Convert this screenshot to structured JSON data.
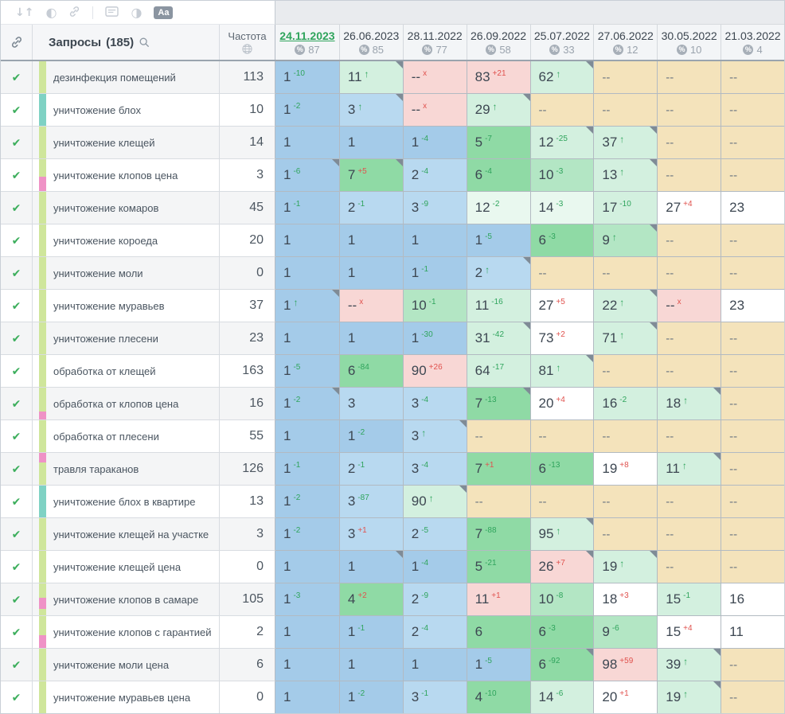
{
  "toolbar": {
    "sort_glyph": "↓↑",
    "contrast_glyph": "◐",
    "half_circle_glyph": "◑",
    "format_label": "Aa"
  },
  "header": {
    "queries_label": "Запросы",
    "queries_count": "(185)",
    "frequency_label": "Частота",
    "dates": [
      {
        "date": "24.11.2023",
        "percent": "87",
        "selected": true
      },
      {
        "date": "26.06.2023",
        "percent": "85"
      },
      {
        "date": "28.11.2022",
        "percent": "77"
      },
      {
        "date": "26.09.2022",
        "percent": "58"
      },
      {
        "date": "25.07.2022",
        "percent": "33"
      },
      {
        "date": "27.06.2022",
        "percent": "12"
      },
      {
        "date": "30.05.2022",
        "percent": "10"
      },
      {
        "date": "21.03.2022",
        "percent": "4"
      }
    ]
  },
  "colors": {
    "b1": "#a4cbe9",
    "b2": "#b8d9f0",
    "g": "#8fdaa5",
    "g2": "#b3e6c4",
    "m": "#d3f0df",
    "ml": "#e9f8ef",
    "w": "#ffffff",
    "p": "#f8d7d5",
    "t": "#f4e3bb",
    "tag_green": "#cfe69b",
    "tag_teal": "#7fd2c4",
    "tag_pink": "#ef92c6",
    "delta_up": "#2fa45c",
    "delta_down": "#e0524e",
    "date_selected": "#2fa45c",
    "check": "#3cae5c"
  },
  "rows": [
    {
      "keyword": "дезинфекция помещений",
      "frequency": "113",
      "tags": [
        {
          "color": "tag_green",
          "pct": 100
        }
      ],
      "cells": [
        {
          "v": "1",
          "d": "-10",
          "bg": "b1"
        },
        {
          "v": "11",
          "a": true,
          "bg": "m",
          "c": true
        },
        {
          "v": "--",
          "x": true,
          "bg": "p"
        },
        {
          "v": "83",
          "d": "+21",
          "bg": "p"
        },
        {
          "v": "62",
          "a": true,
          "bg": "m",
          "c": true
        },
        {
          "v": "--",
          "bg": "t"
        },
        {
          "v": "--",
          "bg": "t"
        },
        {
          "v": "--",
          "bg": "t"
        }
      ]
    },
    {
      "keyword": "уничтожение блох",
      "frequency": "10",
      "tags": [
        {
          "color": "tag_teal",
          "pct": 100
        }
      ],
      "cells": [
        {
          "v": "1",
          "d": "-2",
          "bg": "b1"
        },
        {
          "v": "3",
          "a": true,
          "bg": "b2",
          "c": true
        },
        {
          "v": "--",
          "x": true,
          "bg": "p"
        },
        {
          "v": "29",
          "a": true,
          "bg": "m",
          "c": true
        },
        {
          "v": "--",
          "bg": "t"
        },
        {
          "v": "--",
          "bg": "t"
        },
        {
          "v": "--",
          "bg": "t"
        },
        {
          "v": "--",
          "bg": "t"
        }
      ]
    },
    {
      "keyword": "уничтожение клещей",
      "frequency": "14",
      "tags": [
        {
          "color": "tag_green",
          "pct": 100
        }
      ],
      "cells": [
        {
          "v": "1",
          "bg": "b1"
        },
        {
          "v": "1",
          "bg": "b1"
        },
        {
          "v": "1",
          "d": "-4",
          "bg": "b1"
        },
        {
          "v": "5",
          "d": "-7",
          "bg": "g"
        },
        {
          "v": "12",
          "d": "-25",
          "bg": "m",
          "c": true
        },
        {
          "v": "37",
          "a": true,
          "bg": "m",
          "c": true
        },
        {
          "v": "--",
          "bg": "t"
        },
        {
          "v": "--",
          "bg": "t"
        }
      ]
    },
    {
      "keyword": "уничтожение клопов цена",
      "frequency": "3",
      "tags": [
        {
          "color": "tag_green",
          "pct": 55
        },
        {
          "color": "tag_pink",
          "pct": 45
        }
      ],
      "cells": [
        {
          "v": "1",
          "d": "-6",
          "bg": "b1",
          "c": true
        },
        {
          "v": "7",
          "d": "+5",
          "bg": "g",
          "c": true
        },
        {
          "v": "2",
          "d": "-4",
          "bg": "b2"
        },
        {
          "v": "6",
          "d": "-4",
          "bg": "g"
        },
        {
          "v": "10",
          "d": "-3",
          "bg": "g2"
        },
        {
          "v": "13",
          "a": true,
          "bg": "m",
          "c": true
        },
        {
          "v": "--",
          "bg": "t"
        },
        {
          "v": "--",
          "bg": "t"
        }
      ]
    },
    {
      "keyword": "уничтожение комаров",
      "frequency": "45",
      "tags": [
        {
          "color": "tag_green",
          "pct": 100
        }
      ],
      "cells": [
        {
          "v": "1",
          "d": "-1",
          "bg": "b1"
        },
        {
          "v": "2",
          "d": "-1",
          "bg": "b2"
        },
        {
          "v": "3",
          "d": "-9",
          "bg": "b2"
        },
        {
          "v": "12",
          "d": "-2",
          "bg": "ml"
        },
        {
          "v": "14",
          "d": "-3",
          "bg": "ml"
        },
        {
          "v": "17",
          "d": "-10",
          "bg": "m"
        },
        {
          "v": "27",
          "d": "+4",
          "bg": "w"
        },
        {
          "v": "23",
          "bg": "w"
        }
      ]
    },
    {
      "keyword": "уничтожение короеда",
      "frequency": "20",
      "tags": [
        {
          "color": "tag_green",
          "pct": 100
        }
      ],
      "cells": [
        {
          "v": "1",
          "bg": "b1"
        },
        {
          "v": "1",
          "bg": "b1"
        },
        {
          "v": "1",
          "bg": "b1"
        },
        {
          "v": "1",
          "d": "-5",
          "bg": "b1"
        },
        {
          "v": "6",
          "d": "-3",
          "bg": "g"
        },
        {
          "v": "9",
          "a": true,
          "bg": "g2",
          "c": true
        },
        {
          "v": "--",
          "bg": "t"
        },
        {
          "v": "--",
          "bg": "t"
        }
      ]
    },
    {
      "keyword": "уничтожение моли",
      "frequency": "0",
      "tags": [
        {
          "color": "tag_green",
          "pct": 100
        }
      ],
      "cells": [
        {
          "v": "1",
          "bg": "b1"
        },
        {
          "v": "1",
          "bg": "b1"
        },
        {
          "v": "1",
          "d": "-1",
          "bg": "b1"
        },
        {
          "v": "2",
          "a": true,
          "bg": "b2",
          "c": true
        },
        {
          "v": "--",
          "bg": "t"
        },
        {
          "v": "--",
          "bg": "t"
        },
        {
          "v": "--",
          "bg": "t"
        },
        {
          "v": "--",
          "bg": "t"
        }
      ]
    },
    {
      "keyword": "уничтожение муравьев",
      "frequency": "37",
      "tags": [
        {
          "color": "tag_green",
          "pct": 100
        }
      ],
      "cells": [
        {
          "v": "1",
          "a": true,
          "bg": "b1",
          "c": true
        },
        {
          "v": "--",
          "x": true,
          "bg": "p"
        },
        {
          "v": "10",
          "d": "-1",
          "bg": "g2"
        },
        {
          "v": "11",
          "d": "-16",
          "bg": "m"
        },
        {
          "v": "27",
          "d": "+5",
          "bg": "w"
        },
        {
          "v": "22",
          "a": true,
          "bg": "m",
          "c": true
        },
        {
          "v": "--",
          "x": true,
          "bg": "p"
        },
        {
          "v": "23",
          "bg": "w"
        }
      ]
    },
    {
      "keyword": "уничтожение плесени",
      "frequency": "23",
      "tags": [
        {
          "color": "tag_green",
          "pct": 100
        }
      ],
      "cells": [
        {
          "v": "1",
          "bg": "b1"
        },
        {
          "v": "1",
          "bg": "b1"
        },
        {
          "v": "1",
          "d": "-30",
          "bg": "b1"
        },
        {
          "v": "31",
          "d": "-42",
          "bg": "m",
          "c": true
        },
        {
          "v": "73",
          "d": "+2",
          "bg": "w"
        },
        {
          "v": "71",
          "a": true,
          "bg": "m",
          "c": true
        },
        {
          "v": "--",
          "bg": "t"
        },
        {
          "v": "--",
          "bg": "t"
        }
      ]
    },
    {
      "keyword": "обработка от клещей",
      "frequency": "163",
      "tags": [
        {
          "color": "tag_green",
          "pct": 100
        }
      ],
      "cells": [
        {
          "v": "1",
          "d": "-5",
          "bg": "b1"
        },
        {
          "v": "6",
          "d": "-84",
          "bg": "g"
        },
        {
          "v": "90",
          "d": "+26",
          "bg": "p"
        },
        {
          "v": "64",
          "d": "-17",
          "bg": "m"
        },
        {
          "v": "81",
          "a": true,
          "bg": "m",
          "c": true
        },
        {
          "v": "--",
          "bg": "t"
        },
        {
          "v": "--",
          "bg": "t"
        },
        {
          "v": "--",
          "bg": "t"
        }
      ]
    },
    {
      "keyword": "обработка от клопов цена",
      "frequency": "16",
      "tags": [
        {
          "color": "tag_green",
          "pct": 75
        },
        {
          "color": "tag_pink",
          "pct": 25
        }
      ],
      "cells": [
        {
          "v": "1",
          "d": "-2",
          "bg": "b1",
          "c": true
        },
        {
          "v": "3",
          "bg": "b2"
        },
        {
          "v": "3",
          "d": "-4",
          "bg": "b2"
        },
        {
          "v": "7",
          "d": "-13",
          "bg": "g",
          "c": true
        },
        {
          "v": "20",
          "d": "+4",
          "bg": "w"
        },
        {
          "v": "16",
          "d": "-2",
          "bg": "m"
        },
        {
          "v": "18",
          "a": true,
          "bg": "m",
          "c": true
        },
        {
          "v": "--",
          "bg": "t"
        }
      ]
    },
    {
      "keyword": "обработка от плесени",
      "frequency": "55",
      "tags": [
        {
          "color": "tag_green",
          "pct": 100
        }
      ],
      "cells": [
        {
          "v": "1",
          "bg": "b1"
        },
        {
          "v": "1",
          "d": "-2",
          "bg": "b1"
        },
        {
          "v": "3",
          "a": true,
          "bg": "b2",
          "c": true
        },
        {
          "v": "--",
          "bg": "t"
        },
        {
          "v": "--",
          "bg": "t"
        },
        {
          "v": "--",
          "bg": "t"
        },
        {
          "v": "--",
          "bg": "t"
        },
        {
          "v": "--",
          "bg": "t"
        }
      ]
    },
    {
      "keyword": "травля тараканов",
      "frequency": "126",
      "tags": [
        {
          "color": "tag_pink",
          "pct": 30
        },
        {
          "color": "tag_green",
          "pct": 70
        }
      ],
      "cells": [
        {
          "v": "1",
          "d": "-1",
          "bg": "b1"
        },
        {
          "v": "2",
          "d": "-1",
          "bg": "b2"
        },
        {
          "v": "3",
          "d": "-4",
          "bg": "b2"
        },
        {
          "v": "7",
          "d": "+1",
          "bg": "g"
        },
        {
          "v": "6",
          "d": "-13",
          "bg": "g"
        },
        {
          "v": "19",
          "d": "+8",
          "bg": "w"
        },
        {
          "v": "11",
          "a": true,
          "bg": "m",
          "c": true
        },
        {
          "v": "--",
          "bg": "t"
        }
      ]
    },
    {
      "keyword": "уничтожение блох в квартире",
      "frequency": "13",
      "tags": [
        {
          "color": "tag_teal",
          "pct": 100
        }
      ],
      "cells": [
        {
          "v": "1",
          "d": "-2",
          "bg": "b1"
        },
        {
          "v": "3",
          "d": "-87",
          "bg": "b2"
        },
        {
          "v": "90",
          "a": true,
          "bg": "m",
          "c": true
        },
        {
          "v": "--",
          "bg": "t"
        },
        {
          "v": "--",
          "bg": "t"
        },
        {
          "v": "--",
          "bg": "t"
        },
        {
          "v": "--",
          "bg": "t"
        },
        {
          "v": "--",
          "bg": "t"
        }
      ]
    },
    {
      "keyword": "уничтожение клещей на участке",
      "frequency": "3",
      "tags": [
        {
          "color": "tag_green",
          "pct": 100
        }
      ],
      "cells": [
        {
          "v": "1",
          "d": "-2",
          "bg": "b1"
        },
        {
          "v": "3",
          "d": "+1",
          "bg": "b2"
        },
        {
          "v": "2",
          "d": "-5",
          "bg": "b2"
        },
        {
          "v": "7",
          "d": "-88",
          "bg": "g"
        },
        {
          "v": "95",
          "a": true,
          "bg": "m",
          "c": true
        },
        {
          "v": "--",
          "bg": "t"
        },
        {
          "v": "--",
          "bg": "t"
        },
        {
          "v": "--",
          "bg": "t"
        }
      ]
    },
    {
      "keyword": "уничтожение клещей цена",
      "frequency": "0",
      "tags": [
        {
          "color": "tag_green",
          "pct": 100
        }
      ],
      "cells": [
        {
          "v": "1",
          "bg": "b1"
        },
        {
          "v": "1",
          "bg": "b1",
          "c": true
        },
        {
          "v": "1",
          "d": "-4",
          "bg": "b1"
        },
        {
          "v": "5",
          "d": "-21",
          "bg": "g"
        },
        {
          "v": "26",
          "d": "+7",
          "bg": "p",
          "c": true
        },
        {
          "v": "19",
          "a": true,
          "bg": "m",
          "c": true
        },
        {
          "v": "--",
          "bg": "t"
        },
        {
          "v": "--",
          "bg": "t"
        }
      ]
    },
    {
      "keyword": "уничтожение клопов в самаре",
      "frequency": "105",
      "tags": [
        {
          "color": "tag_green",
          "pct": 45
        },
        {
          "color": "tag_pink",
          "pct": 35
        },
        {
          "color": "tag_green",
          "pct": 20
        }
      ],
      "cells": [
        {
          "v": "1",
          "d": "-3",
          "bg": "b1"
        },
        {
          "v": "4",
          "d": "+2",
          "bg": "g"
        },
        {
          "v": "2",
          "d": "-9",
          "bg": "b2"
        },
        {
          "v": "11",
          "d": "+1",
          "bg": "p"
        },
        {
          "v": "10",
          "d": "-8",
          "bg": "g2"
        },
        {
          "v": "18",
          "d": "+3",
          "bg": "w"
        },
        {
          "v": "15",
          "d": "-1",
          "bg": "m"
        },
        {
          "v": "16",
          "bg": "w"
        }
      ]
    },
    {
      "keyword": "уничтожение клопов с гарантией",
      "frequency": "2",
      "tags": [
        {
          "color": "tag_green",
          "pct": 60
        },
        {
          "color": "tag_pink",
          "pct": 40
        }
      ],
      "cells": [
        {
          "v": "1",
          "bg": "b1"
        },
        {
          "v": "1",
          "d": "-1",
          "bg": "b1"
        },
        {
          "v": "2",
          "d": "-4",
          "bg": "b2"
        },
        {
          "v": "6",
          "bg": "g"
        },
        {
          "v": "6",
          "d": "-3",
          "bg": "g"
        },
        {
          "v": "9",
          "d": "-6",
          "bg": "g2"
        },
        {
          "v": "15",
          "d": "+4",
          "bg": "w"
        },
        {
          "v": "11",
          "bg": "w"
        }
      ]
    },
    {
      "keyword": "уничтожение моли цена",
      "frequency": "6",
      "tags": [
        {
          "color": "tag_green",
          "pct": 100
        }
      ],
      "cells": [
        {
          "v": "1",
          "bg": "b1"
        },
        {
          "v": "1",
          "bg": "b1"
        },
        {
          "v": "1",
          "bg": "b1"
        },
        {
          "v": "1",
          "d": "-5",
          "bg": "b1"
        },
        {
          "v": "6",
          "d": "-92",
          "bg": "g",
          "c": true
        },
        {
          "v": "98",
          "d": "+59",
          "bg": "p"
        },
        {
          "v": "39",
          "a": true,
          "bg": "m",
          "c": true
        },
        {
          "v": "--",
          "bg": "t"
        }
      ]
    },
    {
      "keyword": "уничтожение муравьев цена",
      "frequency": "0",
      "tags": [
        {
          "color": "tag_green",
          "pct": 100
        }
      ],
      "cells": [
        {
          "v": "1",
          "bg": "b1"
        },
        {
          "v": "1",
          "d": "-2",
          "bg": "b1"
        },
        {
          "v": "3",
          "d": "-1",
          "bg": "b2"
        },
        {
          "v": "4",
          "d": "-10",
          "bg": "g"
        },
        {
          "v": "14",
          "d": "-6",
          "bg": "m"
        },
        {
          "v": "20",
          "d": "+1",
          "bg": "w"
        },
        {
          "v": "19",
          "a": true,
          "bg": "m",
          "c": true
        },
        {
          "v": "--",
          "bg": "t"
        }
      ]
    }
  ]
}
